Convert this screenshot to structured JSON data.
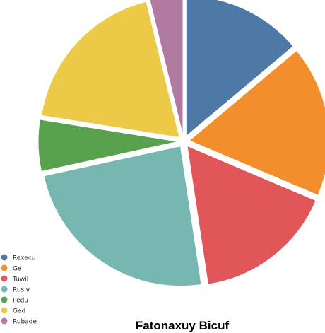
{
  "chart_data": {
    "type": "pie",
    "title": "Fatonaxuy Bicuf",
    "legend_position": "bottom-left",
    "exploded": true,
    "start": "top, clockwise",
    "slices": [
      {
        "label": "Rexecu",
        "value": 13.1,
        "color": "#4e79a7"
      },
      {
        "label": "Ge",
        "value": 16.5,
        "color": "#f28e2b"
      },
      {
        "label": "Tuwil",
        "value": 15.3,
        "color": "#e15759"
      },
      {
        "label": "Rusiv",
        "value": 22.6,
        "color": "#76b7b2"
      },
      {
        "label": "Pedu",
        "value": 5.6,
        "color": "#59a14f"
      },
      {
        "label": "Ged",
        "value": 17.6,
        "color": "#edc948"
      },
      {
        "label": "Rubade",
        "value": 3.6,
        "color": "#b07aa1"
      }
    ]
  }
}
